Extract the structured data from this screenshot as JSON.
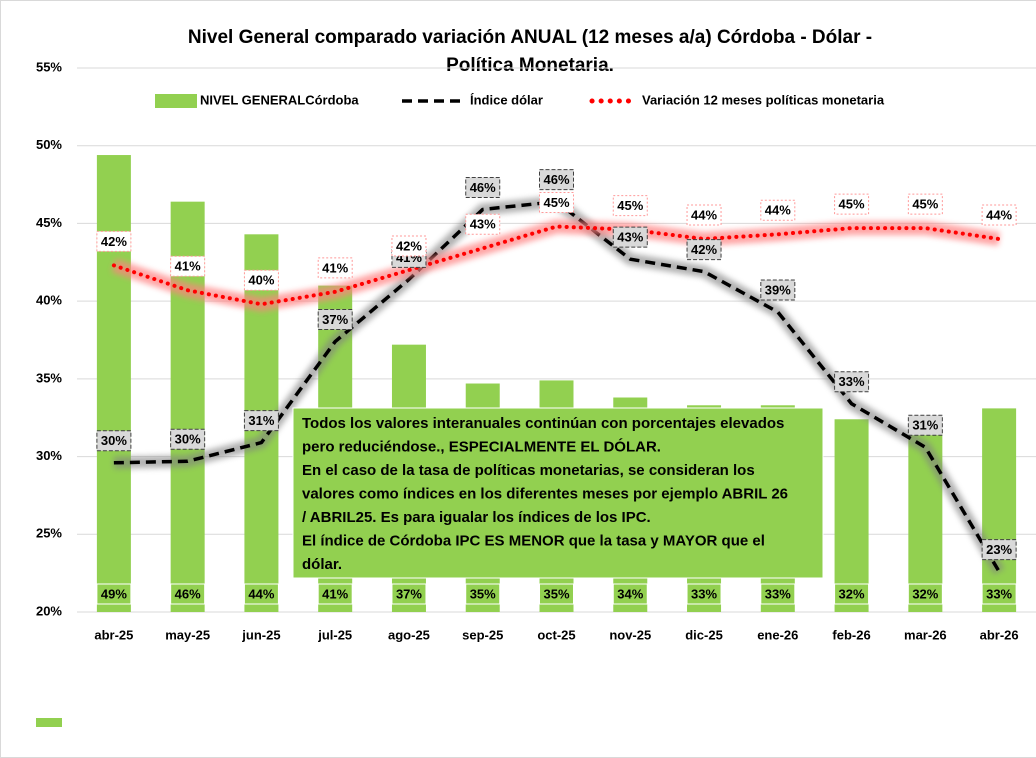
{
  "chart_data": {
    "type": "bar",
    "title": [
      "Nivel General comparado  variación ANUAL (12 meses a/a)  Córdoba -  Dólar -",
      "Política Monetaria."
    ],
    "categories": [
      "abr-25",
      "may-25",
      "jun-25",
      "jul-25",
      "ago-25",
      "sep-25",
      "oct-25",
      "nov-25",
      "dic-25",
      "ene-26",
      "feb-26",
      "mar-26",
      "abr-26"
    ],
    "series": [
      {
        "name": "NIVEL GENERALCórdoba",
        "type": "bar",
        "color": "#92d050",
        "values": [
          49.4,
          46.4,
          44.3,
          41,
          37.2,
          34.7,
          34.9,
          33.8,
          33.3,
          33.3,
          32.4,
          31.8,
          33.1
        ],
        "value_labels": [
          "49%",
          "46%",
          "44%",
          "41%",
          "37%",
          "35%",
          "35%",
          "34%",
          "33%",
          "33%",
          "32%",
          "32%",
          "33%"
        ]
      },
      {
        "name": "Índice dólar",
        "type": "line",
        "color": "#000000",
        "values": [
          29.6,
          29.7,
          30.9,
          37.4,
          41.4,
          45.9,
          46.4,
          42.7,
          41.9,
          39.3,
          33.4,
          30.6,
          22.6
        ],
        "value_labels": [
          "30%",
          "30%",
          "31%",
          "37%",
          "41%",
          "46%",
          "46%",
          "43%",
          "42%",
          "39%",
          "33%",
          "31%",
          "23%"
        ]
      },
      {
        "name": "Variación 12 meses  políticas monetaria",
        "type": "dotted",
        "color": "#ff0000",
        "values": [
          42.3,
          40.7,
          39.8,
          40.6,
          42,
          43.4,
          44.8,
          44.6,
          44,
          44.3,
          44.7,
          44.7,
          44
        ],
        "value_labels": [
          "42%",
          "41%",
          "40%",
          "41%",
          "42%",
          "43%",
          "45%",
          "45%",
          "44%",
          "44%",
          "45%",
          "45%",
          "44%"
        ]
      }
    ],
    "ylim": [
      20,
      55
    ],
    "yticks": [
      {
        "value": 20,
        "label": "20%"
      },
      {
        "value": 25,
        "label": "25%"
      },
      {
        "value": 30,
        "label": "30%"
      },
      {
        "value": 35,
        "label": "35%"
      },
      {
        "value": 40,
        "label": "40%"
      },
      {
        "value": 45,
        "label": "45%"
      },
      {
        "value": 50,
        "label": "50%"
      },
      {
        "value": 55,
        "label": "55%"
      }
    ],
    "grid": true,
    "annotation": [
      "Todos los valores interanuales continúan con porcentajes elevados",
      "pero reduciéndose., ESPECIALMENTE EL DÓLAR.",
      "En el caso de la tasa de políticas monetarias, se consideran los",
      "valores como índices en los diferentes meses por ejemplo ABRIL 26",
      "/ ABRIL25. Es para igualar los índices de los IPC.",
      "El índice de Córdoba IPC ES MENOR que la tasa y MAYOR que el",
      "dólar."
    ]
  }
}
